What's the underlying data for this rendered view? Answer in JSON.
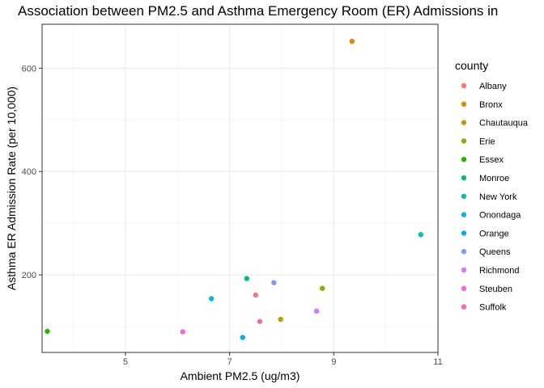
{
  "chart_data": {
    "type": "scatter",
    "title": "Association between PM2.5 and Asthma Emergency Room (ER) Admissions in",
    "xlabel": "Ambient PM2.5 (ug/m3)",
    "ylabel": "Asthma ER Admission Rate (per 10,000)",
    "xlim": [
      3.4,
      11
    ],
    "ylim": [
      50,
      685
    ],
    "xticks": [
      5,
      7,
      9,
      11
    ],
    "yticks": [
      200,
      400,
      600
    ],
    "grid": true,
    "legend_title": "county",
    "legend_position": "right",
    "series": [
      {
        "name": "Albany",
        "color": "#F8766D",
        "x": 7.5,
        "y": 161
      },
      {
        "name": "Bronx",
        "color": "#E18A00",
        "x": 9.35,
        "y": 652
      },
      {
        "name": "Chautauqua",
        "color": "#BE9C00",
        "x": 7.98,
        "y": 114
      },
      {
        "name": "Erie",
        "color": "#8CAB00",
        "x": 8.78,
        "y": 174
      },
      {
        "name": "Essex",
        "color": "#24B700",
        "x": 3.5,
        "y": 91
      },
      {
        "name": "Monroe",
        "color": "#00BE70",
        "x": 7.33,
        "y": 193
      },
      {
        "name": "New York",
        "color": "#00C1AB",
        "x": 10.67,
        "y": 278
      },
      {
        "name": "Onondaga",
        "color": "#00BBDA",
        "x": 6.65,
        "y": 154
      },
      {
        "name": "Orange",
        "color": "#00ACFC",
        "x": 7.25,
        "y": 79
      },
      {
        "name": "Queens",
        "color": "#8B93FF",
        "x": 7.85,
        "y": 185
      },
      {
        "name": "Richmond",
        "color": "#D575FE",
        "x": 8.67,
        "y": 130
      },
      {
        "name": "Steuben",
        "color": "#F962DD",
        "x": 6.1,
        "y": 90
      },
      {
        "name": "Suffolk",
        "color": "#FF65AC",
        "x": 7.58,
        "y": 110
      }
    ]
  }
}
